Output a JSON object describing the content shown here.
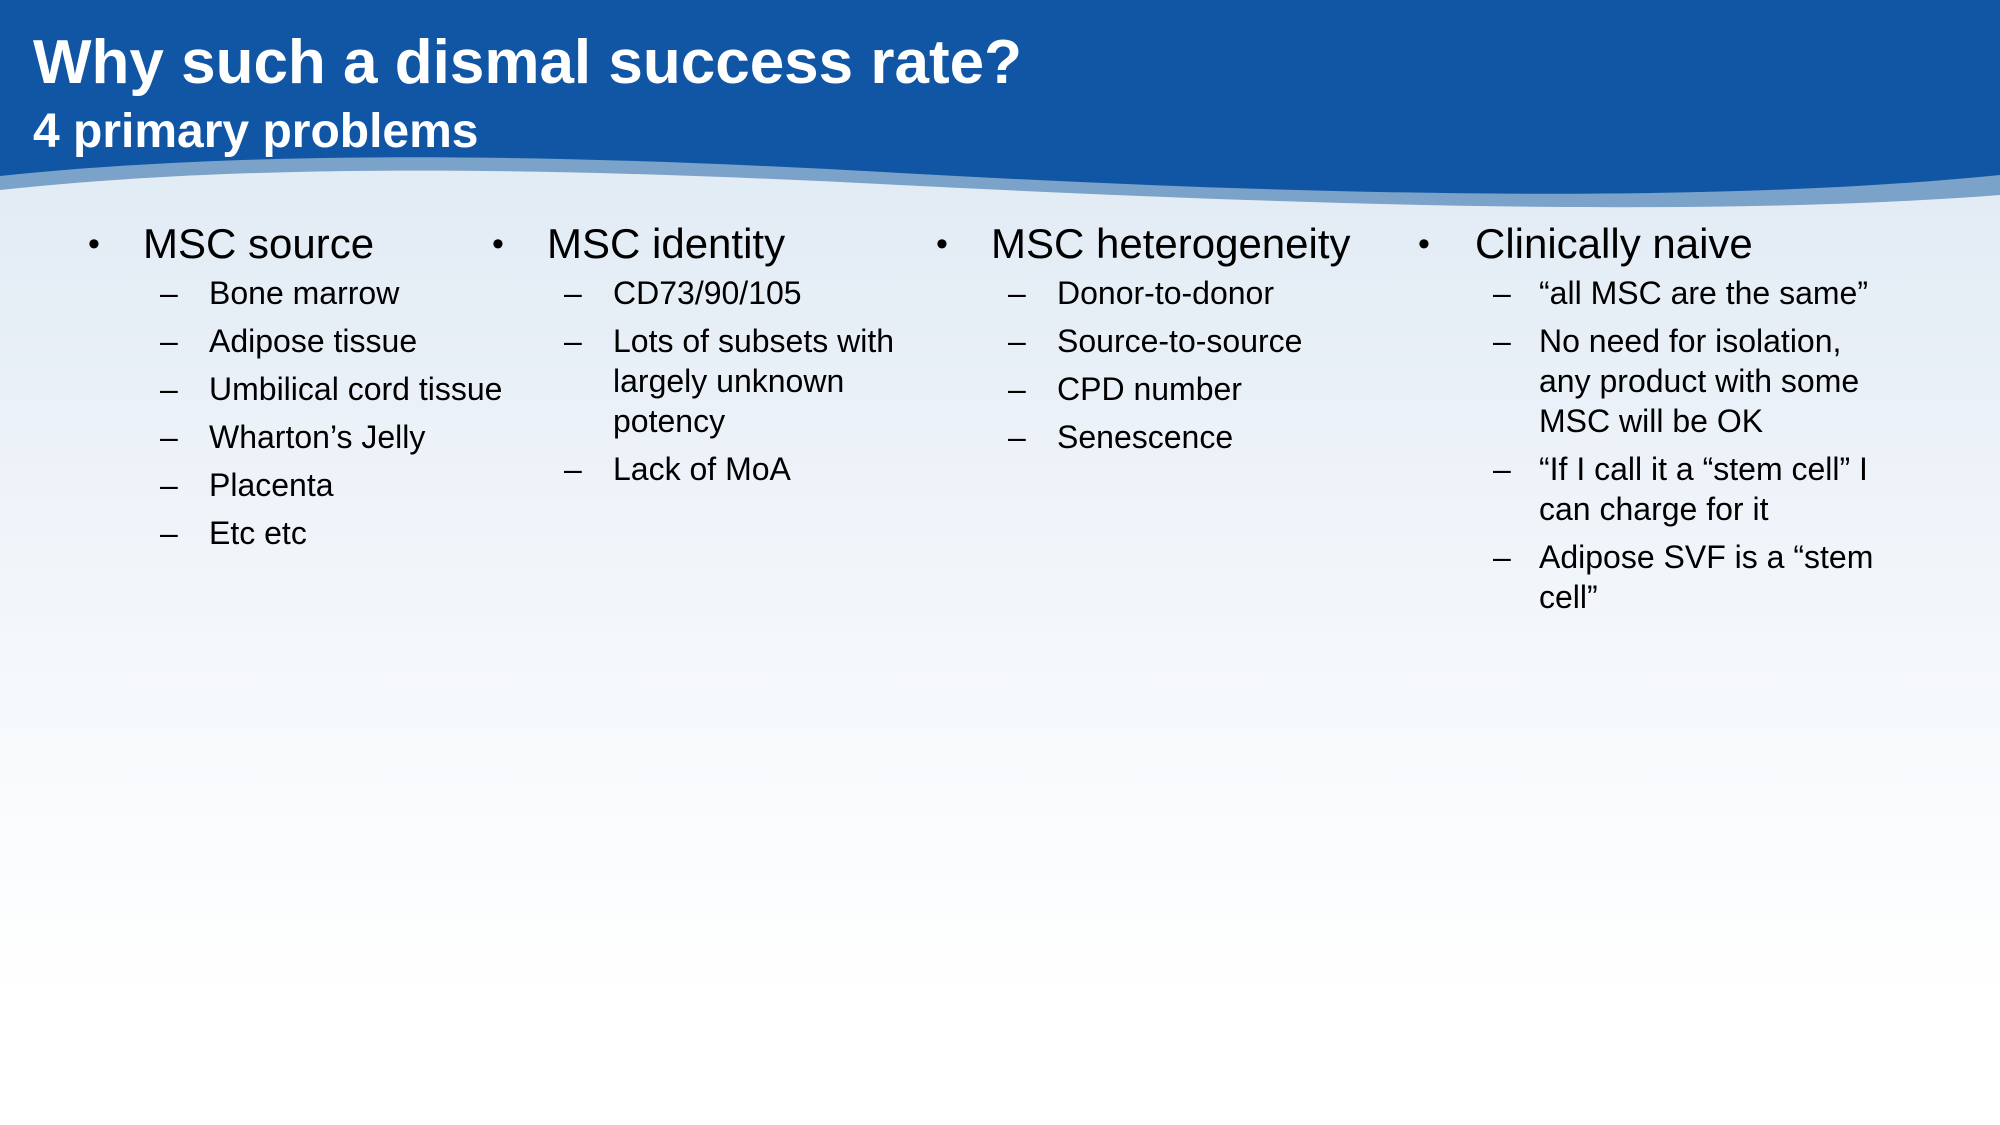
{
  "slide": {
    "title": "Why such a dismal success rate?",
    "subtitle": "4 primary problems"
  },
  "theme": {
    "header_blue": "#1056a5",
    "wave_accent": "#7ba2c8",
    "background_top": "#dce8f2",
    "background_bottom": "#ffffff"
  },
  "columns": [
    {
      "bullet": "•",
      "heading": "MSC source",
      "items": [
        {
          "dash": "–",
          "text": "Bone marrow"
        },
        {
          "dash": "–",
          "text": "Adipose tissue"
        },
        {
          "dash": "–",
          "text": "Umbilical cord tissue"
        },
        {
          "dash": "–",
          "text": "Wharton’s Jelly"
        },
        {
          "dash": "–",
          "text": "Placenta"
        },
        {
          "dash": "–",
          "text": "Etc etc"
        }
      ]
    },
    {
      "bullet": "•",
      "heading": "MSC identity",
      "items": [
        {
          "dash": "–",
          "text": "CD73/90/105"
        },
        {
          "dash": "–",
          "text": "Lots of subsets with largely unknown potency"
        },
        {
          "dash": "–",
          "text": "Lack of MoA"
        }
      ]
    },
    {
      "bullet": "•",
      "heading": "MSC heterogeneity",
      "items": [
        {
          "dash": "–",
          "text": "Donor-to-donor"
        },
        {
          "dash": "–",
          "text": "Source-to-source"
        },
        {
          "dash": "–",
          "text": "CPD number"
        },
        {
          "dash": "–",
          "text": "Senescence"
        }
      ]
    },
    {
      "bullet": "•",
      "heading": "Clinically naive",
      "items": [
        {
          "dash": "–",
          "text": "“all MSC are the same”"
        },
        {
          "dash": "–",
          "text": "No need for isolation, any product with some MSC will be OK"
        },
        {
          "dash": "–",
          "text": "“If I call it a “stem cell” I can charge for it"
        },
        {
          "dash": "–",
          "text": "Adipose SVF is a “stem cell”"
        }
      ]
    }
  ]
}
